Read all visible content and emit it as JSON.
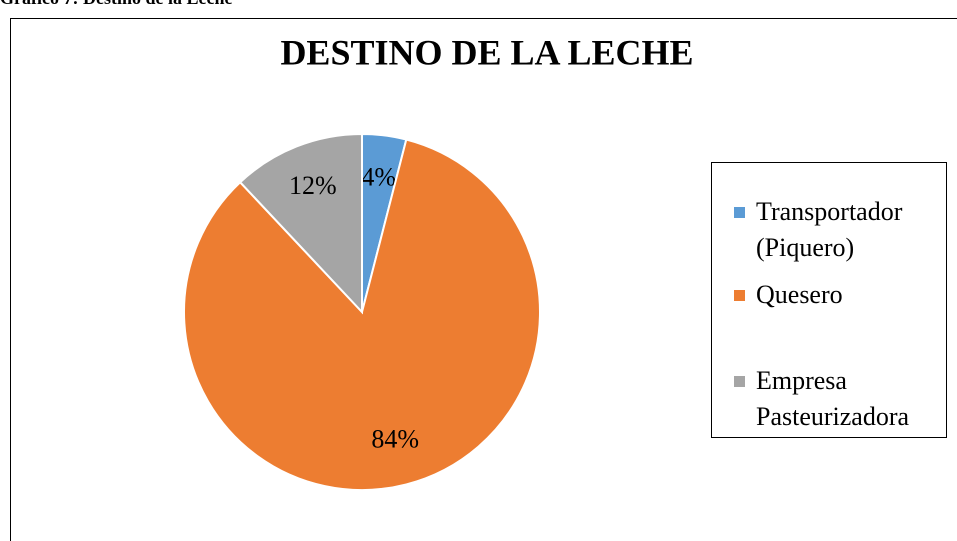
{
  "caption": "Gráfico 7: Destino de la Leche",
  "chart_data": {
    "type": "pie",
    "title": "DESTINO DE LA LECHE",
    "categories": [
      "Transportador (Piquero)",
      "Quesero",
      "Empresa Pasteurizadora"
    ],
    "values": [
      4,
      84,
      12
    ],
    "value_labels": [
      "4%",
      "84%",
      "12%"
    ],
    "colors": [
      "#5b9bd5",
      "#ed7d31",
      "#a5a5a5"
    ],
    "legend": "right"
  }
}
